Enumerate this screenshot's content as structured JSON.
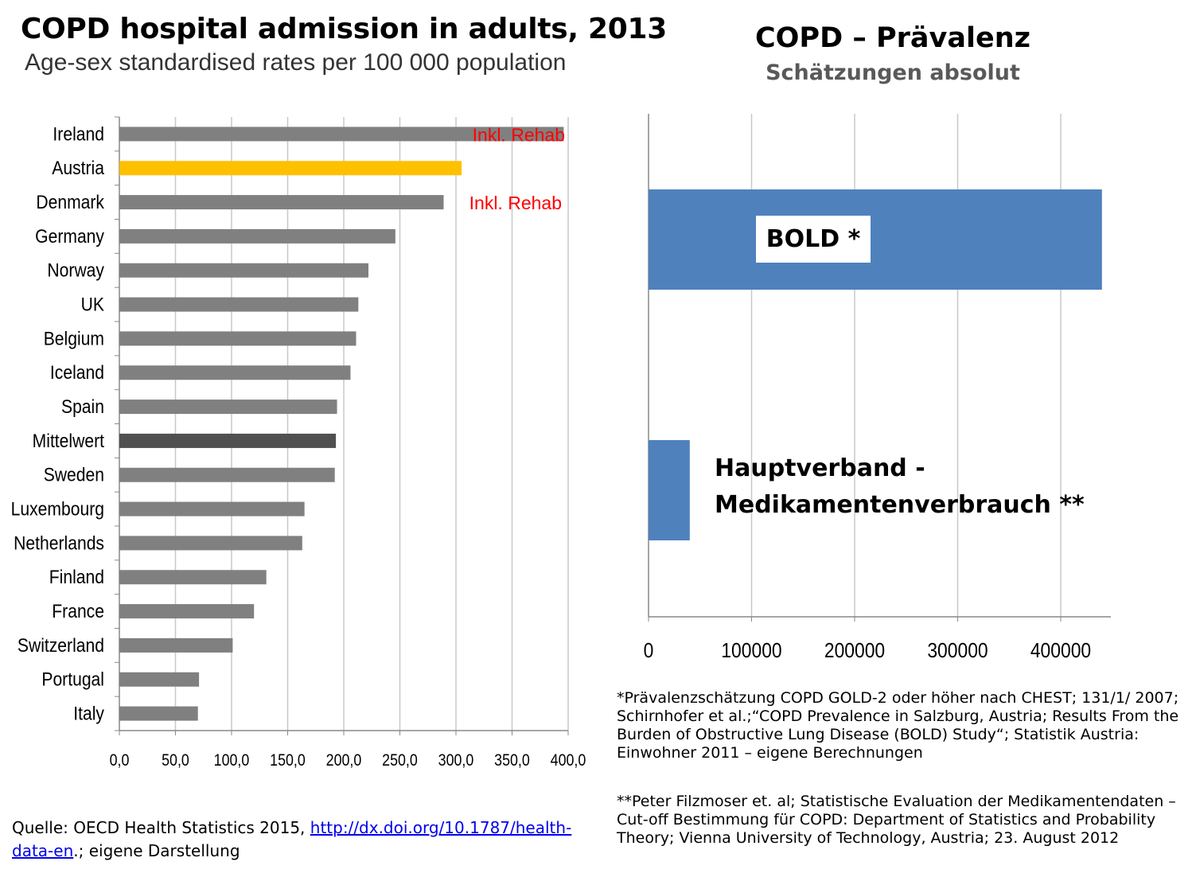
{
  "left": {
    "title": "COPD hospital admission in adults, 2013",
    "subtitle": "Age-sex standardised rates per 100 000 population",
    "source_prefix": "Quelle: OECD Health Statistics 2015, ",
    "source_link": "http://dx.doi.org/10.1787/health-data-en",
    "source_suffix": ".; eigene Darstellung"
  },
  "right": {
    "title": "COPD – Prävalenz",
    "subtitle": "Schätzungen absolut",
    "note1": "*Prävalenzschätzung COPD GOLD-2 oder höher nach CHEST; 131/1/ 2007; Schirnhofer et al.;“COPD Prevalence in Salzburg, Austria; Results From the Burden of Obstructive Lung Disease (BOLD) Study“; Statistik Austria: Einwohner 2011 –  eigene Berechnungen",
    "note2": "**Peter Filzmoser et. al; Statistische Evaluation der Medikamentendaten – Cut-off Bestimmung für COPD: Department of Statistics and Probability Theory; Vienna University of Technology, Austria; 23. August 2012"
  },
  "chart_data": [
    {
      "type": "bar",
      "orientation": "horizontal",
      "title": "COPD hospital admission in adults, 2013",
      "subtitle": "Age-sex standardised rates per 100 000 population",
      "categories": [
        "Ireland",
        "Austria",
        "Denmark",
        "Germany",
        "Norway",
        "UK",
        "Belgium",
        "Iceland",
        "Spain",
        "Mittelwert",
        "Sweden",
        "Luxembourg",
        "Netherlands",
        "Finland",
        "France",
        "Switzerland",
        "Portugal",
        "Italy"
      ],
      "values": [
        396,
        305,
        289,
        246,
        222,
        213,
        211,
        206,
        194,
        193,
        192,
        165,
        163,
        131,
        120,
        101,
        71,
        70
      ],
      "colors": [
        "#808080",
        "#ffc000",
        "#808080",
        "#808080",
        "#808080",
        "#808080",
        "#808080",
        "#808080",
        "#808080",
        "#505050",
        "#808080",
        "#808080",
        "#808080",
        "#808080",
        "#808080",
        "#808080",
        "#808080",
        "#808080"
      ],
      "annotations": [
        {
          "category": "Ireland",
          "text": "Inkl. Rehab",
          "color": "#ff0000"
        },
        {
          "category": "Denmark",
          "text": "Inkl. Rehab",
          "color": "#ff0000"
        }
      ],
      "xlim": [
        0,
        400
      ],
      "xticks": [
        "0,0",
        "50,0",
        "100,0",
        "150,0",
        "200,0",
        "250,0",
        "300,0",
        "350,0",
        "400,0"
      ],
      "grid": true
    },
    {
      "type": "bar",
      "orientation": "horizontal",
      "title": "COPD – Prävalenz",
      "subtitle": "Schätzungen absolut",
      "categories": [
        "BOLD *",
        "Hauptverband - Medikamentenverbrauch **"
      ],
      "category_lines": [
        [
          "BOLD *"
        ],
        [
          "Hauptverband -",
          "Medikamentenverbrauch **"
        ]
      ],
      "values": [
        440000,
        40000
      ],
      "color": "#4f81bd",
      "xlim": [
        0,
        450000
      ],
      "xticks": [
        "0",
        "100000",
        "200000",
        "300000",
        "400000"
      ],
      "grid": true
    }
  ]
}
